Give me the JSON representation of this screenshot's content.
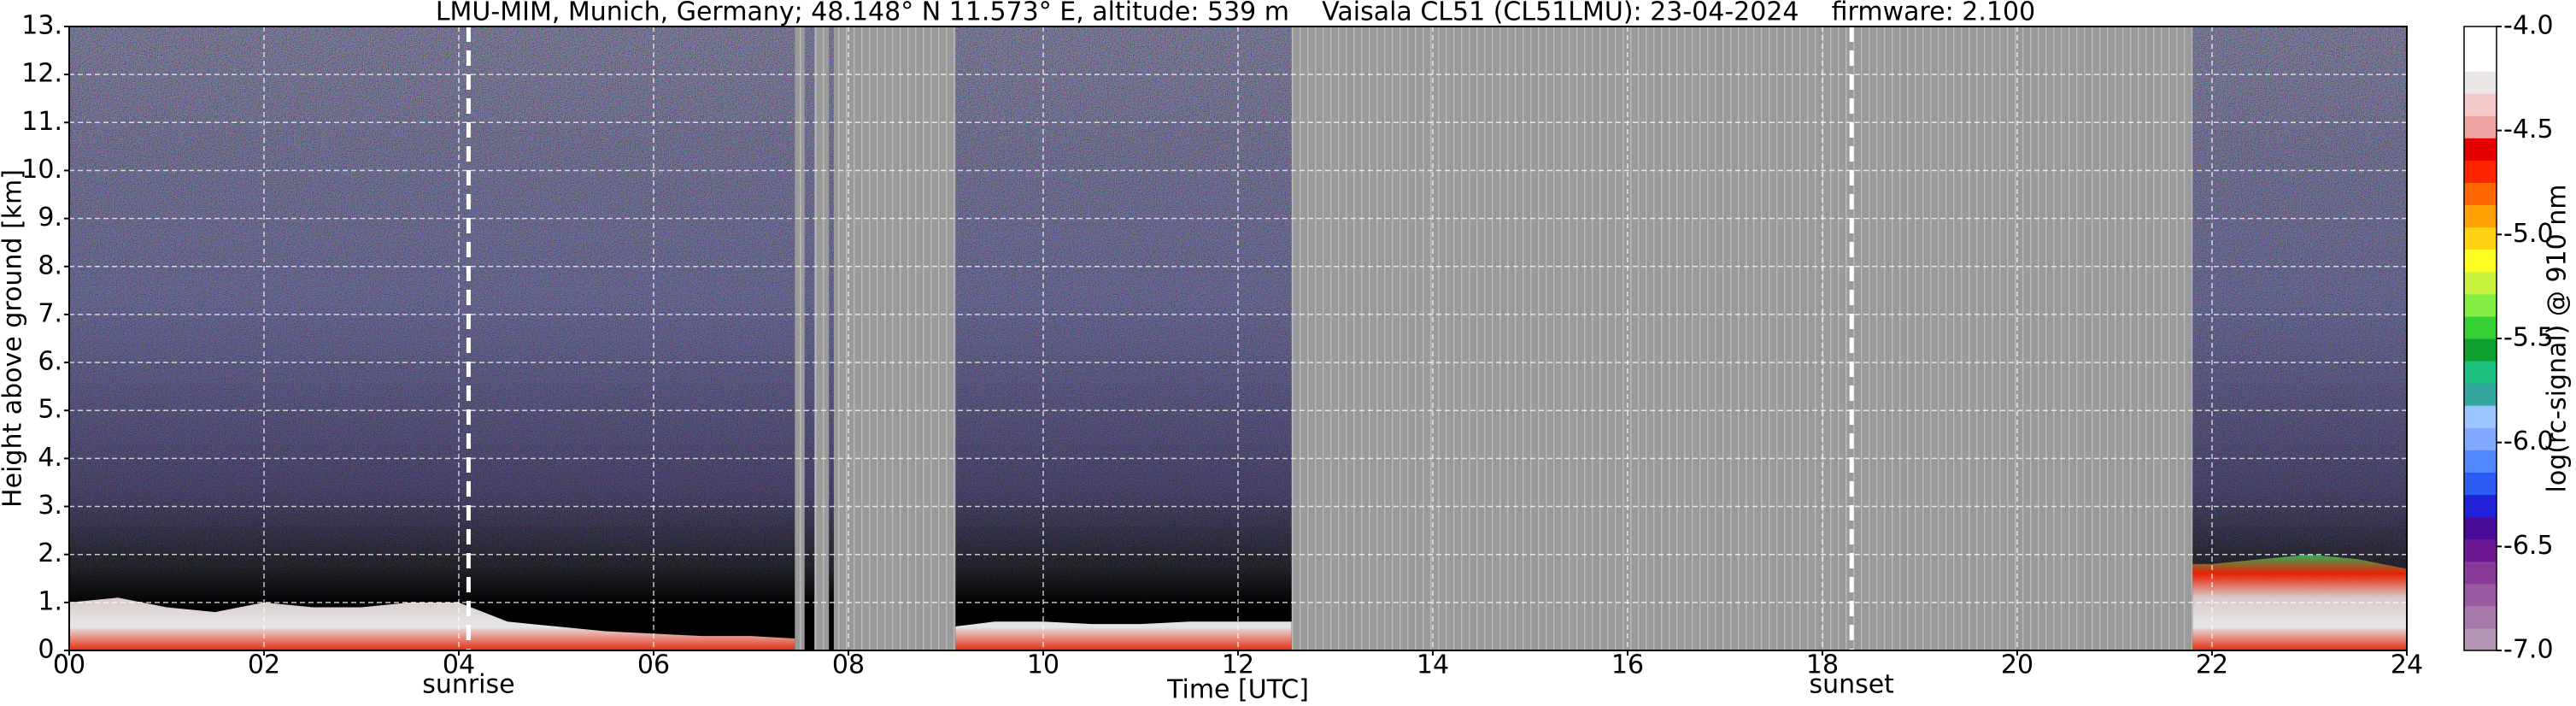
{
  "chart_data": {
    "type": "heatmap",
    "title": "LMU-MIM, Munich, Germany; 48.148° N 11.573° E, altitude: 539 m    Vaisala CL51 (CL51LMU): 23-04-2024    firmware: 2.100",
    "xlabel": "Time [UTC]",
    "ylabel": "Height above ground [km]",
    "xlim": [
      0,
      24
    ],
    "xticks": [
      {
        "value": 0,
        "label": "00"
      },
      {
        "value": 2,
        "label": "02"
      },
      {
        "value": 4,
        "label": "04"
      },
      {
        "value": 6,
        "label": "06"
      },
      {
        "value": 8,
        "label": "08"
      },
      10,
      12,
      14,
      16,
      18,
      20,
      22,
      24
    ],
    "ylim": [
      0,
      13
    ],
    "yticks": [
      {
        "value": 0,
        "label": "0."
      },
      {
        "value": 1,
        "label": "1."
      },
      {
        "value": 2,
        "label": "2."
      },
      {
        "value": 3,
        "label": "3."
      },
      {
        "value": 4,
        "label": "4."
      },
      {
        "value": 5,
        "label": "5."
      },
      {
        "value": 6,
        "label": "6."
      },
      {
        "value": 7,
        "label": "7."
      },
      {
        "value": 8,
        "label": "8."
      },
      {
        "value": 9,
        "label": "9."
      },
      {
        "value": 10,
        "label": "10."
      },
      {
        "value": 11,
        "label": "11."
      },
      {
        "value": 12,
        "label": "12."
      },
      {
        "value": 13,
        "label": "13."
      }
    ],
    "grid": true,
    "annotations": [
      {
        "text": "sunrise",
        "x": 4.1
      },
      {
        "text": "sunset",
        "x": 18.3
      }
    ],
    "missing": [
      [
        7.45,
        7.55
      ],
      [
        7.65,
        7.8
      ],
      [
        7.85,
        9.1
      ],
      [
        12.55,
        21.8
      ]
    ],
    "x": [
      0,
      0.5,
      1,
      1.5,
      2,
      2.5,
      3,
      3.5,
      4,
      4.5,
      5,
      5.5,
      6,
      6.5,
      7,
      7.45,
      null,
      9.1,
      9.5,
      10,
      10.5,
      11,
      11.5,
      12,
      12.55,
      null,
      21.8,
      22,
      22.5,
      23,
      23.5,
      24
    ],
    "values": [
      1.0,
      1.1,
      0.9,
      0.8,
      1.0,
      0.9,
      0.9,
      1.0,
      1.0,
      0.6,
      0.5,
      0.4,
      0.35,
      0.3,
      0.3,
      0.25,
      null,
      0.5,
      0.6,
      0.6,
      0.55,
      0.55,
      0.6,
      0.6,
      0.6,
      null,
      1.8,
      1.8,
      1.9,
      2.0,
      1.9,
      1.7
    ],
    "colorbar": {
      "label": "log(rc-signal) @ 910 nm",
      "lim": [
        -7,
        -4
      ],
      "ticks": [
        {
          "value": -7,
          "label": "-7.0"
        },
        -6.5,
        {
          "value": -6,
          "label": "-6.0"
        },
        -5.5,
        {
          "value": -5,
          "label": "-5.0"
        },
        -4.5,
        {
          "value": -4,
          "label": "-4.0"
        }
      ],
      "colors": [
        "#b496b4",
        "#a87aac",
        "#9a5aa2",
        "#883a98",
        "#6e1894",
        "#4a0a98",
        "#2222d8",
        "#2c5cf4",
        "#5088ff",
        "#80a8ff",
        "#9cc4ff",
        "#34a6a0",
        "#1cc07e",
        "#10a032",
        "#34d034",
        "#84ee44",
        "#c8f23c",
        "#ffff24",
        "#ffd214",
        "#ffa004",
        "#ff6600",
        "#ff2400",
        "#e40000",
        "#f0a4a4",
        "#f2c8c8",
        "#ebe6e6",
        "#ffffff",
        "#ffffff"
      ]
    }
  }
}
